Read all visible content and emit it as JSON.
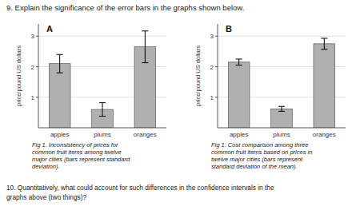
{
  "annotations": [
    "9.  Explain the significance of the error bars in the graphs shown below.",
    "10. Quantitatively, what could account for such differences in the confidence intervals in the\ngraphs above (two things)?"
  ],
  "chart_data": [
    {
      "type": "bar",
      "title": "A",
      "categories": [
        "apples",
        "plums",
        "oranges"
      ],
      "values": [
        2.1,
        0.6,
        2.65
      ],
      "errors": [
        0.3,
        0.22,
        0.52
      ],
      "color": "#b0b0b0",
      "ylim": [
        0,
        3.4
      ],
      "yticks": [
        1,
        2,
        3
      ],
      "ylabel": "price/pound US dollars",
      "caption": "Fig 1.  Inconsistency of prices for\ncommon fruit items among twelve\nmajor cities (bars represent standard\ndeviation)."
    },
    {
      "type": "bar",
      "title": "B",
      "categories": [
        "apples",
        "plums",
        "oranges"
      ],
      "values": [
        2.15,
        0.62,
        2.75
      ],
      "errors": [
        0.1,
        0.08,
        0.18
      ],
      "color": "#b0b0b0",
      "ylim": [
        0,
        3.4
      ],
      "yticks": [
        1,
        2,
        3
      ],
      "ylabel": "price/pound US dollars",
      "caption": "Fig 1.  Cost comparison among three\ncommon fruit items based on prices in\ntwelve major cities (bars represent\nstandard deviation of the mean)."
    }
  ]
}
